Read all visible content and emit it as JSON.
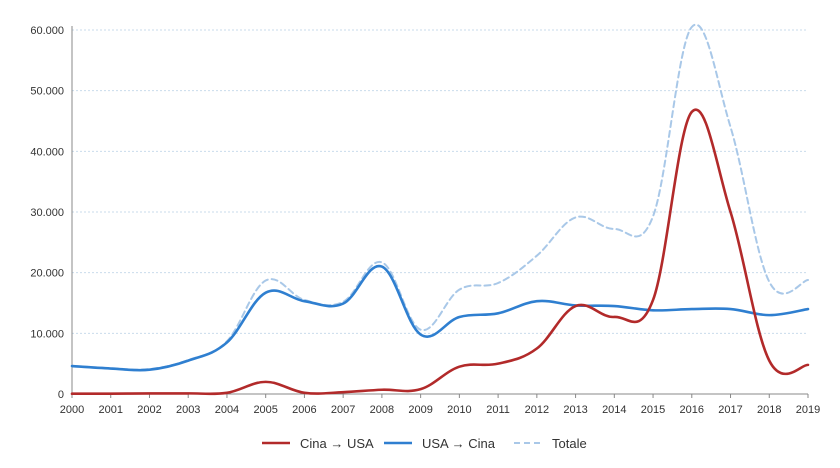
{
  "chart_data": {
    "type": "line",
    "x": [
      2000,
      2001,
      2002,
      2003,
      2004,
      2005,
      2006,
      2007,
      2008,
      2009,
      2010,
      2011,
      2012,
      2013,
      2014,
      2015,
      2016,
      2017,
      2018,
      2019
    ],
    "x_tick_labels": [
      "2000",
      "2001",
      "2002",
      "2003",
      "2004",
      "2005",
      "2006",
      "2007",
      "2008",
      "2009",
      "2010",
      "2011",
      "2012",
      "2013",
      "2014",
      "2015",
      "2016",
      "2017",
      "2018",
      "2019"
    ],
    "y_tick_values": [
      0,
      10000,
      20000,
      30000,
      40000,
      50000,
      60000
    ],
    "y_tick_labels": [
      "0",
      "10.000",
      "20.000",
      "30.000",
      "40.000",
      "50.000",
      "60.000"
    ],
    "ylim": [
      0,
      60000
    ],
    "grid": true,
    "legend_position": "bottom",
    "series": [
      {
        "name": "Cina → USA",
        "color": "#b22a2a",
        "dashed": false,
        "values": [
          50,
          50,
          100,
          100,
          200,
          2000,
          200,
          300,
          700,
          800,
          4500,
          5000,
          7500,
          14500,
          12700,
          15500,
          46500,
          30000,
          5500,
          4800
        ]
      },
      {
        "name": "USA → Cina",
        "color": "#2f7fd0",
        "dashed": false,
        "values": [
          4600,
          4200,
          4000,
          5500,
          8500,
          16700,
          15300,
          14900,
          21000,
          9800,
          12700,
          13300,
          15300,
          14600,
          14500,
          13800,
          14000,
          14000,
          13000,
          14000
        ]
      },
      {
        "name": "Totale",
        "color": "#a9c8e8",
        "dashed": true,
        "values": [
          4650,
          4250,
          4100,
          5600,
          8700,
          18700,
          15500,
          15200,
          21700,
          10600,
          17200,
          18300,
          22800,
          29100,
          27200,
          29300,
          60500,
          44000,
          18500,
          18800
        ]
      }
    ]
  }
}
